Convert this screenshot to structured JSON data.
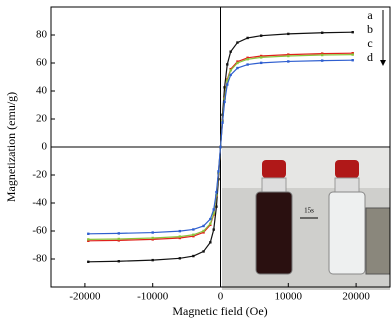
{
  "chart_data": {
    "type": "line",
    "xlabel": "Magnetic field (Oe)",
    "ylabel": "Magnetization (emu/g)",
    "x": [
      -19500,
      -15000,
      -10000,
      -6000,
      -4000,
      -2500,
      -1500,
      -1000,
      -600,
      -300,
      0,
      300,
      600,
      1000,
      1500,
      2500,
      4000,
      6000,
      10000,
      15000,
      19500
    ],
    "series": [
      {
        "name": "a",
        "color": "#111111",
        "values": [
          -82,
          -81.6,
          -80.8,
          -79.5,
          -77.9,
          -74.6,
          -68.1,
          -59,
          -42.6,
          -23,
          0,
          23,
          42.6,
          59,
          68.1,
          74.6,
          77.9,
          79.5,
          80.8,
          81.6,
          82
        ]
      },
      {
        "name": "b",
        "color": "#e0201a",
        "values": [
          -67,
          -66.7,
          -66,
          -65,
          -63.7,
          -61,
          -55.6,
          -48.2,
          -34.8,
          -18.8,
          0,
          18.8,
          34.8,
          48.2,
          55.6,
          61,
          63.7,
          65,
          66,
          66.7,
          67
        ]
      },
      {
        "name": "c",
        "color": "#8ac43c",
        "values": [
          -66,
          -65.7,
          -65,
          -64,
          -62.7,
          -60,
          -54.8,
          -47.5,
          -34.3,
          -18.5,
          0,
          18.5,
          34.3,
          47.5,
          54.8,
          60,
          62.7,
          64,
          65,
          65.7,
          66
        ]
      },
      {
        "name": "d",
        "color": "#2f5fd0",
        "values": [
          -62,
          -61.7,
          -61.1,
          -60.1,
          -58.9,
          -56.4,
          -51.5,
          -44.6,
          -32.2,
          -17.4,
          0,
          17.4,
          32.2,
          44.6,
          51.5,
          56.4,
          58.9,
          60.1,
          61.1,
          61.7,
          62
        ]
      }
    ],
    "xlim": [
      -25000,
      25000
    ],
    "xticks": [
      -20000,
      -10000,
      0,
      10000,
      20000
    ],
    "ylim": [
      -100,
      100
    ],
    "yticks": [
      -80,
      -60,
      -40,
      -20,
      0,
      20,
      40,
      60,
      80
    ],
    "inset_label": "15s"
  }
}
